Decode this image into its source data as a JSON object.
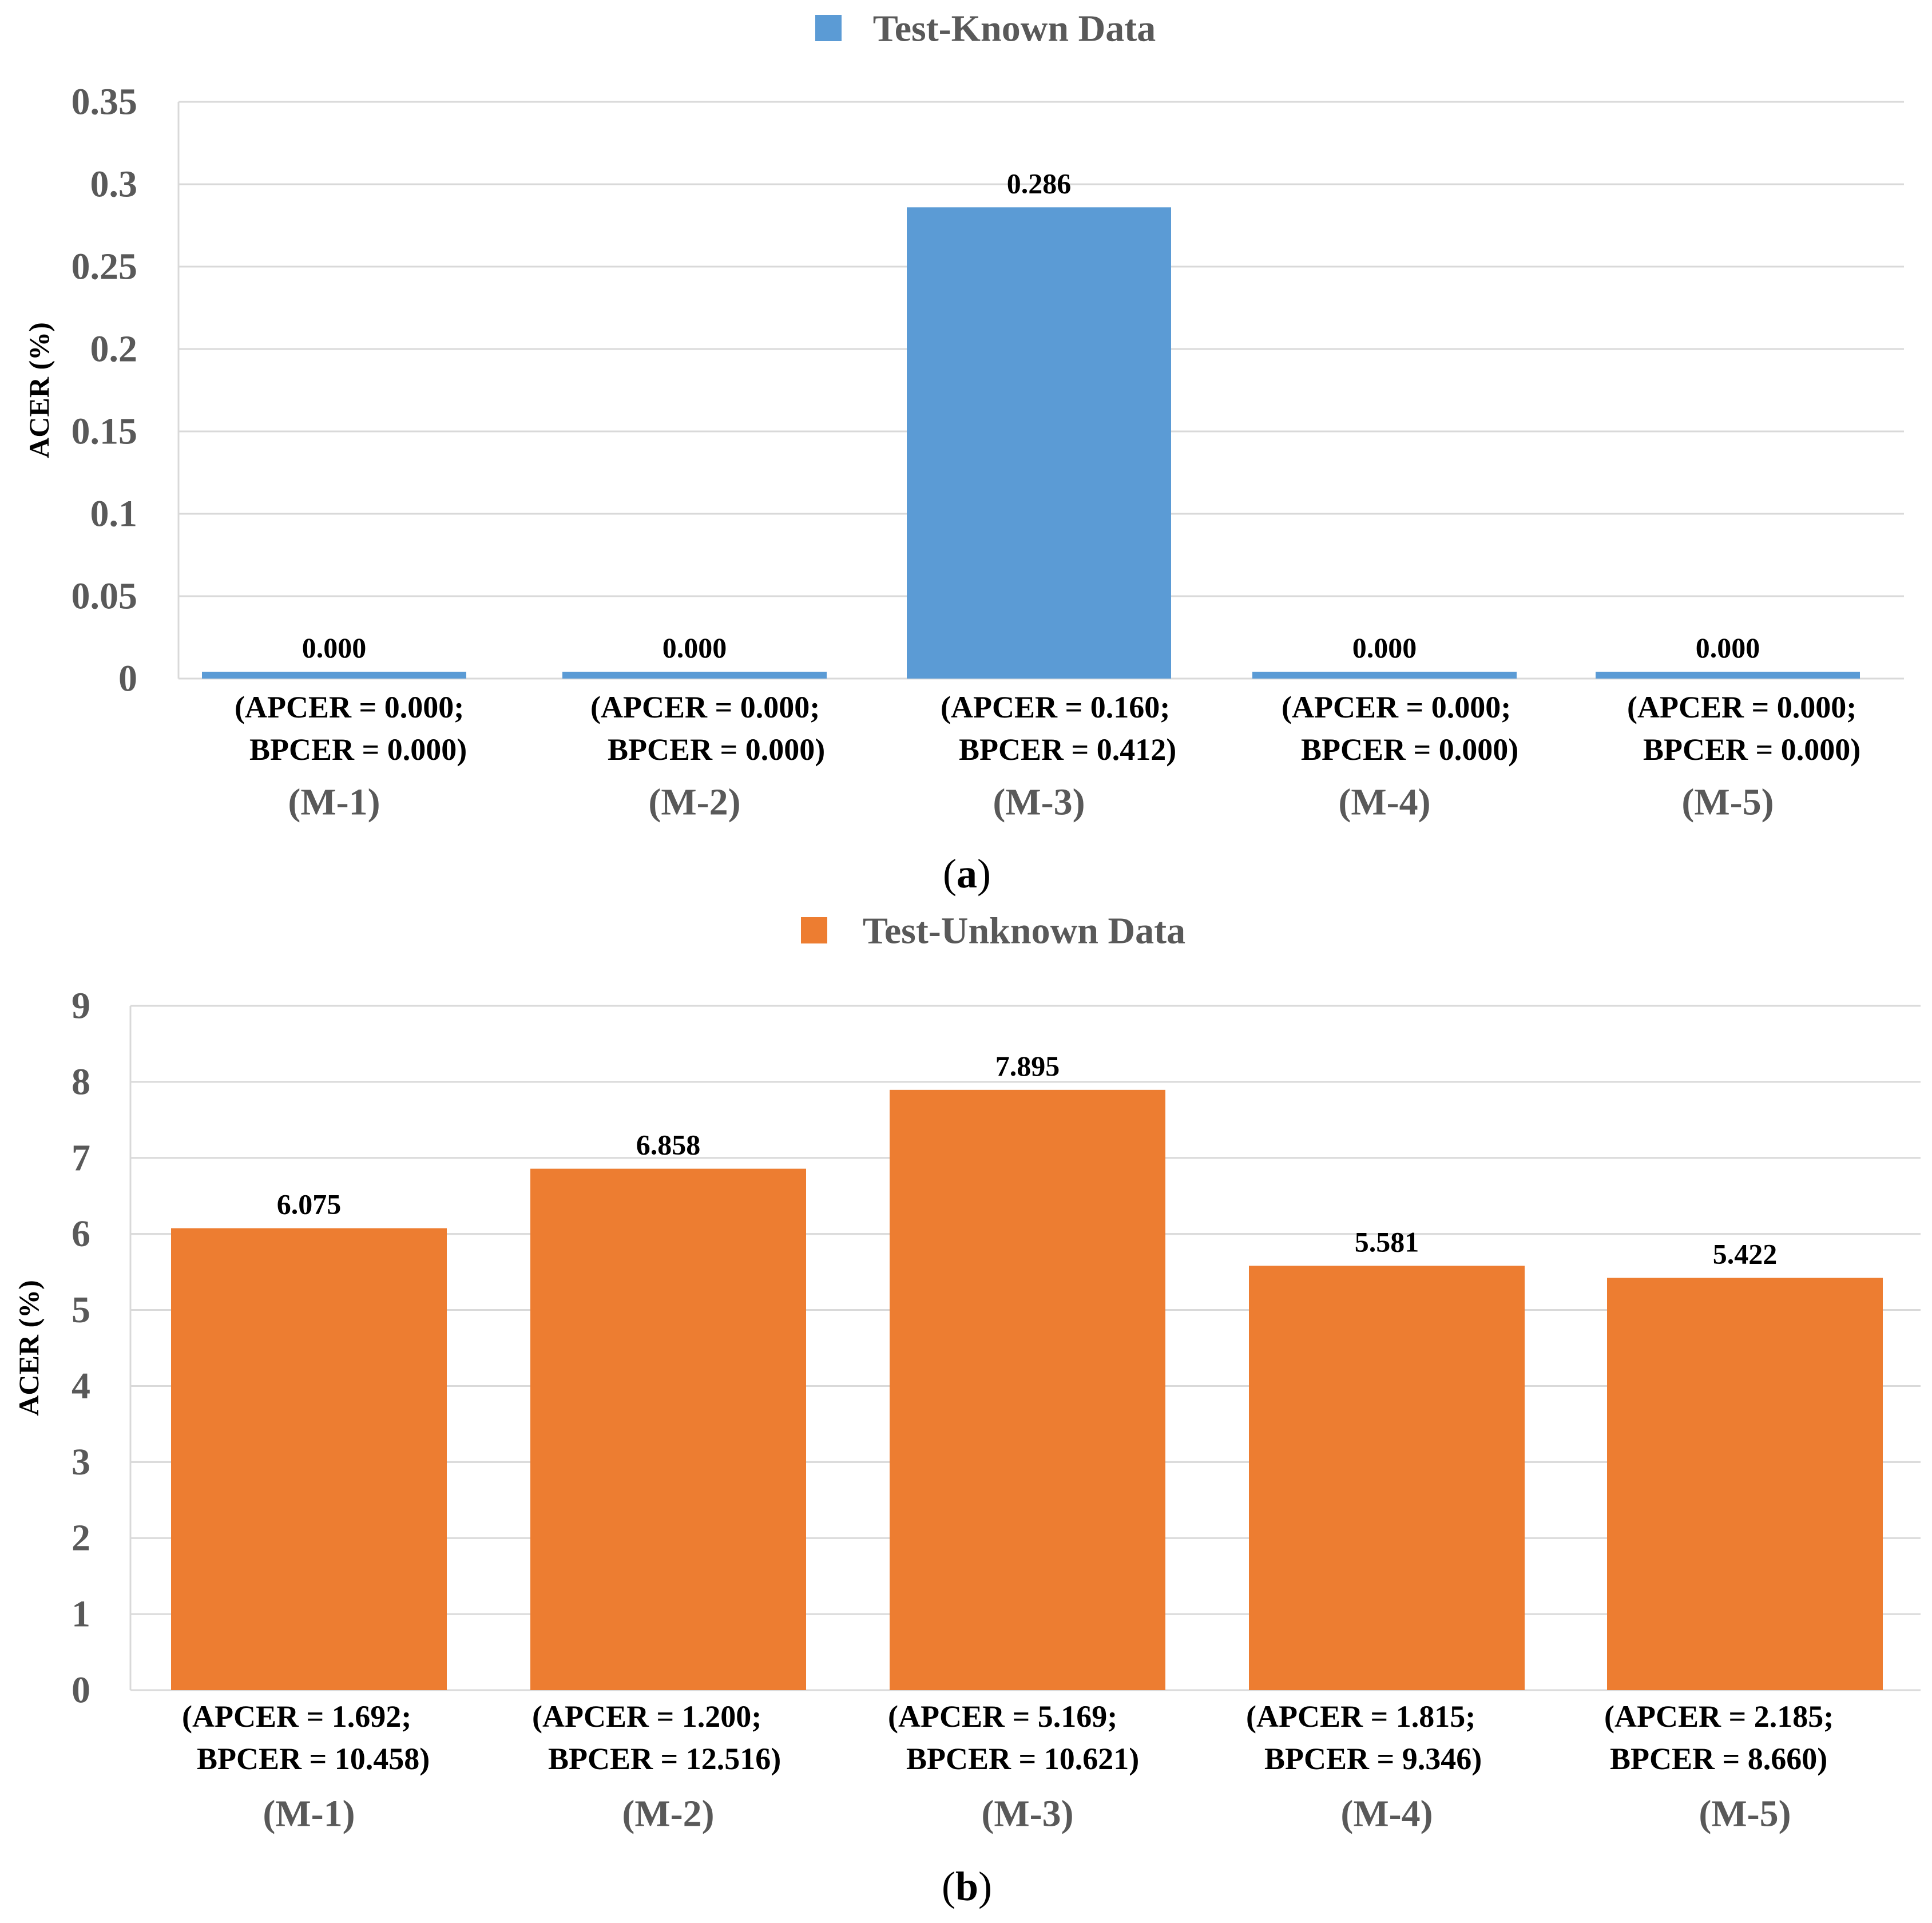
{
  "chart_data": [
    {
      "type": "bar",
      "panel_label": "a",
      "legend": [
        {
          "name": "Test-Known Data",
          "color": "#5B9BD5"
        }
      ],
      "ylabel": "ACER (%)",
      "ylim": [
        0,
        0.35
      ],
      "yticks": [
        "0",
        "0.05",
        "0.1",
        "0.15",
        "0.2",
        "0.25",
        "0.3",
        "0.35"
      ],
      "categories": [
        "(M-1)",
        "(M-2)",
        "(M-3)",
        "(M-4)",
        "(M-5)"
      ],
      "category_details": [
        [
          "(APCER = 0.000;",
          "BPCER = 0.000)"
        ],
        [
          "(APCER = 0.000;",
          "BPCER = 0.000)"
        ],
        [
          "(APCER = 0.160;",
          "BPCER = 0.412)"
        ],
        [
          "(APCER = 0.000;",
          "BPCER = 0.000)"
        ],
        [
          "(APCER = 0.000;",
          "BPCER = 0.000)"
        ]
      ],
      "series": [
        {
          "name": "Test-Known Data",
          "values": [
            0.0,
            0.0,
            0.286,
            0.0,
            0.0
          ],
          "labels": [
            "0.000",
            "0.000",
            "0.286",
            "0.000",
            "0.000"
          ]
        }
      ],
      "grid": true
    },
    {
      "type": "bar",
      "panel_label": "b",
      "legend": [
        {
          "name": "Test-Unknown Data",
          "color": "#ED7D31"
        }
      ],
      "ylabel": "ACER (%)",
      "ylim": [
        0,
        9
      ],
      "yticks": [
        "0",
        "1",
        "2",
        "3",
        "4",
        "5",
        "6",
        "7",
        "8",
        "9"
      ],
      "categories": [
        "(M-1)",
        "(M-2)",
        "(M-3)",
        "(M-4)",
        "(M-5)"
      ],
      "category_details": [
        [
          "(APCER = 1.692;",
          "BPCER = 10.458)"
        ],
        [
          "(APCER = 1.200;",
          "BPCER = 12.516)"
        ],
        [
          "(APCER = 5.169;",
          "BPCER = 10.621)"
        ],
        [
          "(APCER = 1.815;",
          "BPCER = 9.346)"
        ],
        [
          "(APCER = 2.185;",
          "BPCER = 8.660)"
        ]
      ],
      "series": [
        {
          "name": "Test-Unknown Data",
          "values": [
            6.075,
            6.858,
            7.895,
            5.581,
            5.422
          ],
          "labels": [
            "6.075",
            "6.858",
            "7.895",
            "5.581",
            "5.422"
          ]
        }
      ],
      "grid": true
    }
  ]
}
